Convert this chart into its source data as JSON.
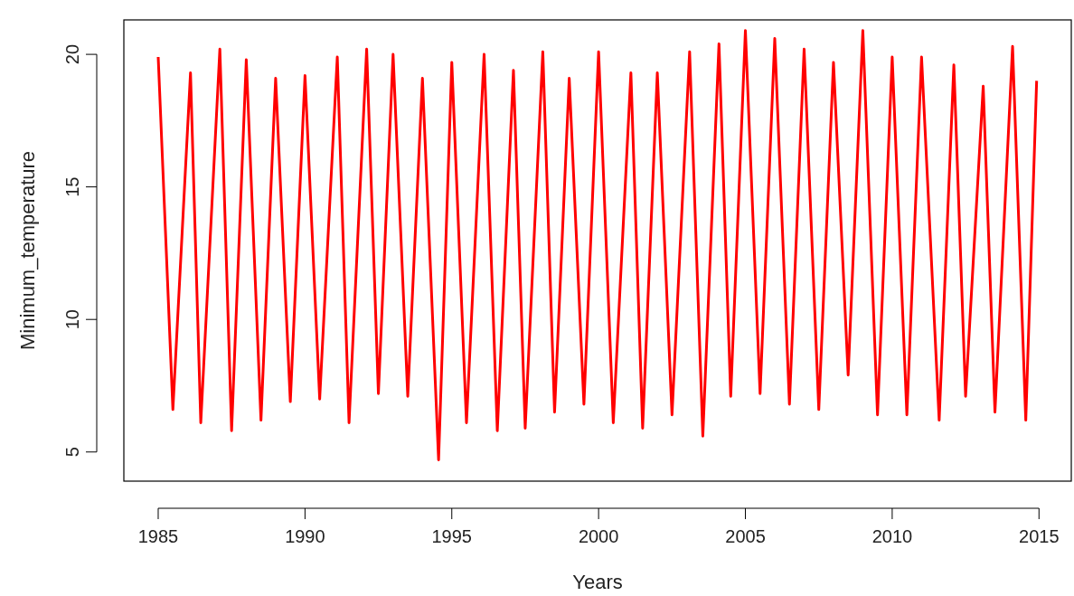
{
  "chart_data": {
    "type": "line",
    "xlabel": "Years",
    "ylabel": "Minimum_temperature",
    "x": [
      1985.0,
      1985.5,
      1986.1,
      1986.45,
      1987.1,
      1987.5,
      1988.0,
      1988.5,
      1989.0,
      1989.5,
      1990.0,
      1990.5,
      1991.1,
      1991.5,
      1992.1,
      1992.5,
      1993.0,
      1993.5,
      1994.0,
      1994.55,
      1995.0,
      1995.5,
      1996.1,
      1996.55,
      1997.1,
      1997.5,
      1998.1,
      1998.5,
      1999.0,
      1999.5,
      2000.0,
      2000.5,
      2001.1,
      2001.5,
      2002.0,
      2002.5,
      2003.1,
      2003.55,
      2004.1,
      2004.5,
      2005.0,
      2005.5,
      2006.0,
      2006.5,
      2007.0,
      2007.5,
      2008.0,
      2008.5,
      2009.0,
      2009.5,
      2010.0,
      2010.5,
      2011.0,
      2011.6,
      2012.1,
      2012.5,
      2013.1,
      2013.5,
      2014.1,
      2014.55,
      2014.92
    ],
    "series": [
      {
        "color": "#ff0000",
        "values": [
          19.9,
          6.6,
          19.3,
          6.1,
          20.2,
          5.8,
          19.8,
          6.2,
          19.1,
          6.9,
          19.2,
          7.0,
          19.9,
          6.1,
          20.2,
          7.2,
          20.0,
          7.1,
          19.1,
          4.7,
          19.7,
          6.1,
          20.0,
          5.8,
          19.4,
          5.9,
          20.1,
          6.5,
          19.1,
          6.8,
          20.1,
          6.1,
          19.3,
          5.9,
          19.3,
          6.4,
          20.1,
          5.6,
          20.4,
          7.1,
          20.9,
          7.2,
          20.6,
          6.8,
          20.2,
          6.6,
          19.7,
          7.9,
          20.9,
          6.4,
          19.9,
          6.4,
          19.9,
          6.2,
          19.6,
          7.1,
          18.8,
          6.5,
          20.3,
          6.2,
          19.0
        ]
      }
    ],
    "xlim": [
      1983.83,
      2016.1
    ],
    "xticks": [
      1985,
      1990,
      1995,
      2000,
      2005,
      2010,
      2015
    ],
    "ylim": [
      3.9,
      21.3
    ],
    "yticks": [
      5,
      10,
      15,
      20
    ],
    "grid": false
  }
}
